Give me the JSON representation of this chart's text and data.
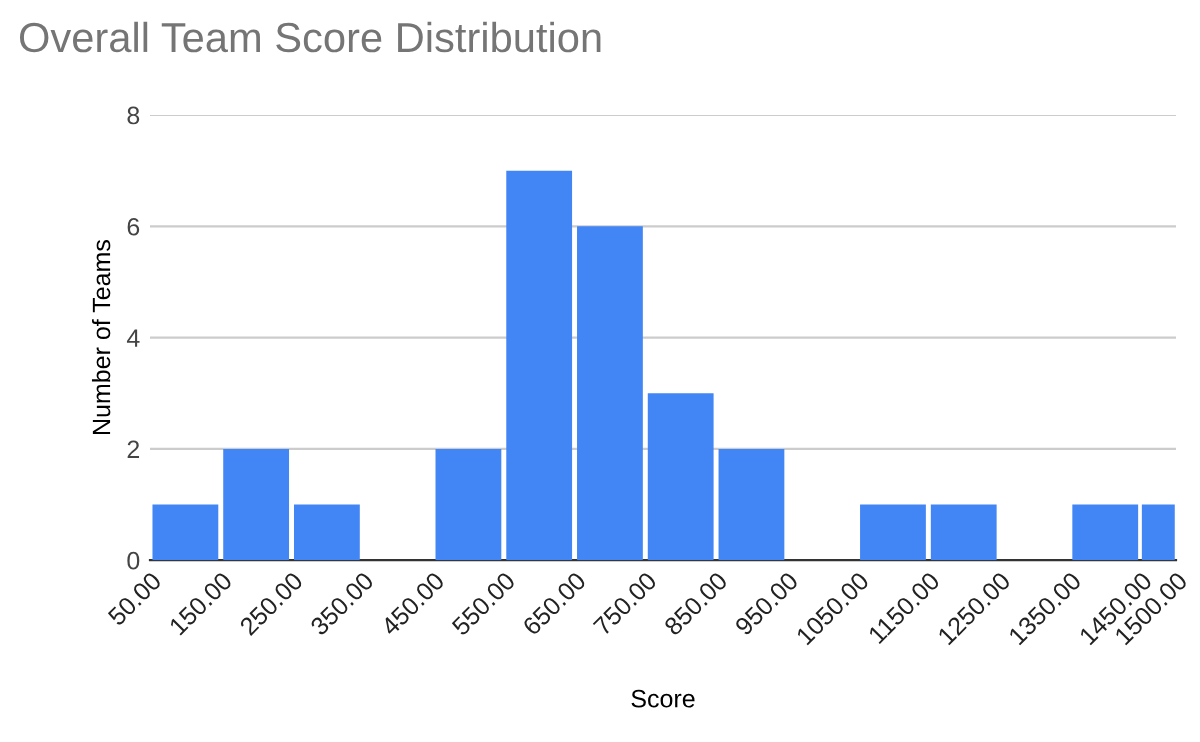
{
  "chart_data": {
    "type": "histogram",
    "title": "Overall Team Score Distribution",
    "xlabel": "Score",
    "ylabel": "Number of Teams",
    "bins": [
      50,
      150,
      250,
      350,
      450,
      550,
      650,
      750,
      850,
      950,
      1050,
      1150,
      1250,
      1350,
      1450,
      1500
    ],
    "xlim": [
      50,
      1500
    ],
    "values": [
      1,
      2,
      1,
      0,
      2,
      7,
      6,
      3,
      2,
      0,
      1,
      1,
      0,
      1,
      1
    ],
    "color": "#4285f4",
    "xticks": [
      {
        "value": 50,
        "label": "50.00"
      },
      {
        "value": 150,
        "label": "150.00"
      },
      {
        "value": 250,
        "label": "250.00"
      },
      {
        "value": 350,
        "label": "350.00"
      },
      {
        "value": 450,
        "label": "450.00"
      },
      {
        "value": 550,
        "label": "550.00"
      },
      {
        "value": 650,
        "label": "650.00"
      },
      {
        "value": 750,
        "label": "750.00"
      },
      {
        "value": 850,
        "label": "850.00"
      },
      {
        "value": 950,
        "label": "950.00"
      },
      {
        "value": 1050,
        "label": "1050.00"
      },
      {
        "value": 1150,
        "label": "1150.00"
      },
      {
        "value": 1250,
        "label": "1250.00"
      },
      {
        "value": 1350,
        "label": "1350.00"
      },
      {
        "value": 1450,
        "label": "1450.00"
      },
      {
        "value": 1500,
        "label": "1500.00"
      }
    ],
    "ylim": [
      0,
      8
    ],
    "yticks": [
      0,
      2,
      4,
      6,
      8
    ],
    "grid": "y"
  }
}
